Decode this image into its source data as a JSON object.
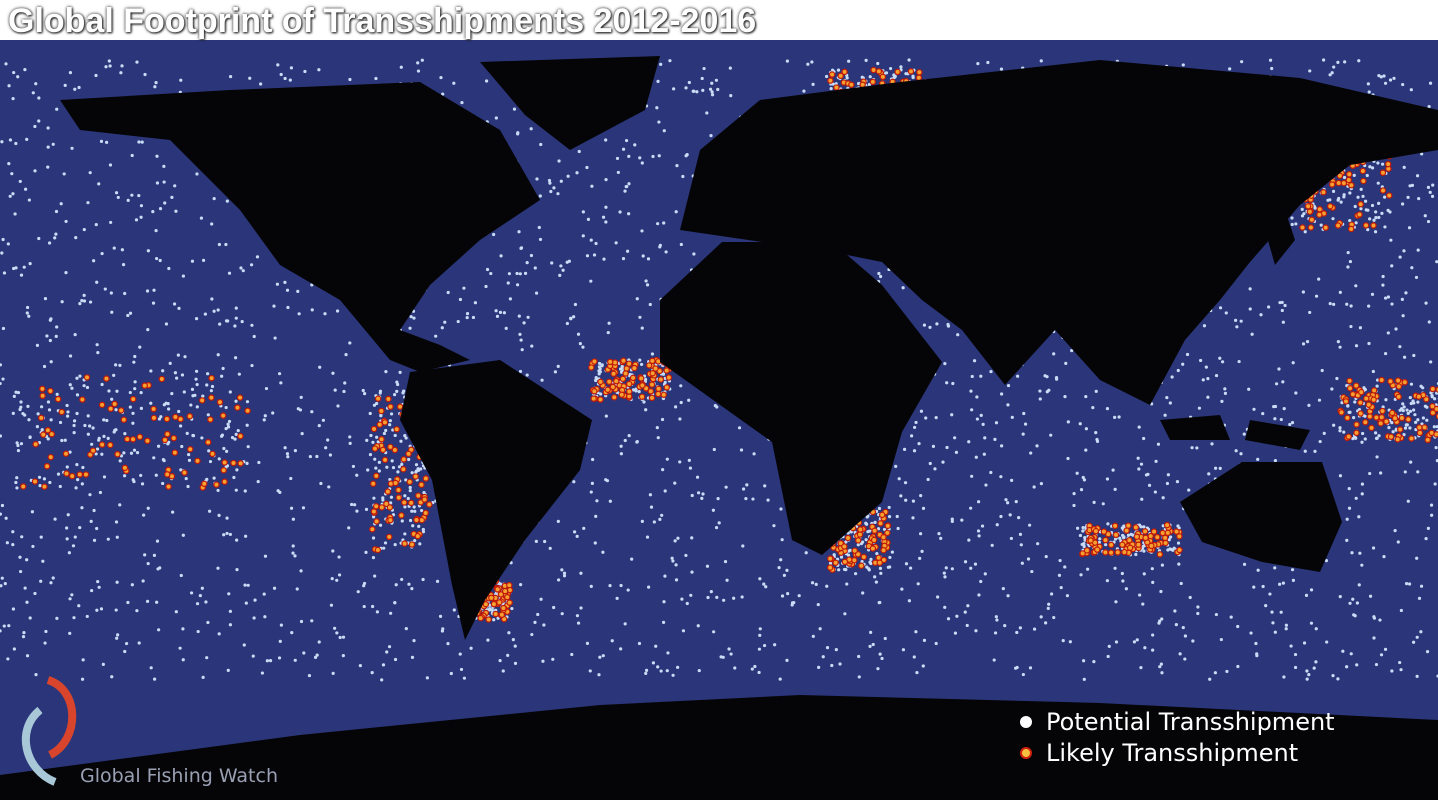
{
  "title": "Global Footprint of Transshipments 2012-2016",
  "legend": {
    "items": [
      {
        "label": "Potential Transshipment"
      },
      {
        "label": "Likely Transshipment"
      }
    ]
  },
  "logo": {
    "text": "Global Fishing Watch"
  }
}
